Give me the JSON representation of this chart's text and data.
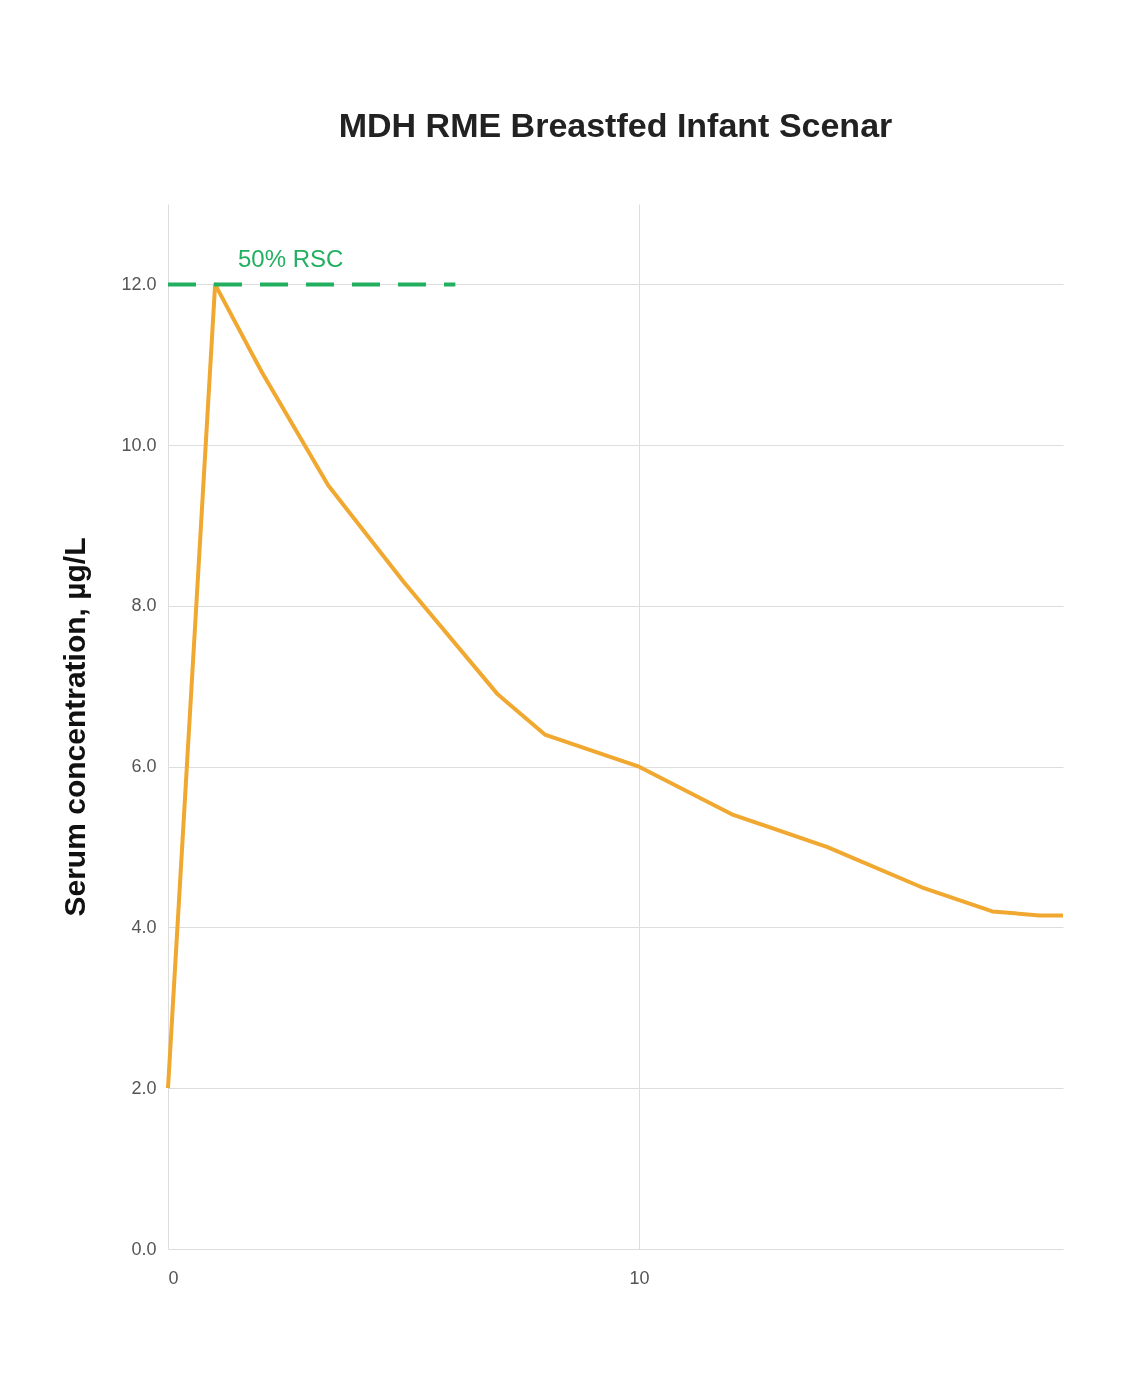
{
  "chart_data": {
    "type": "line",
    "title": "MDH RME Breastfed Infant Scenar",
    "ylabel": "Serum concentration, µg/L",
    "xlim": [
      0,
      19
    ],
    "xticks": [
      0,
      10
    ],
    "ylim": [
      0,
      13
    ],
    "yticks": [
      {
        "value": 0,
        "label": "0.0"
      },
      {
        "value": 2,
        "label": "2.0"
      },
      {
        "value": 4,
        "label": "4.0"
      },
      {
        "value": 6,
        "label": "6.0"
      },
      {
        "value": 8,
        "label": "8.0"
      },
      {
        "value": 10,
        "label": "10.0"
      },
      {
        "value": 12,
        "label": "12.0"
      }
    ],
    "grid": true,
    "series": [
      {
        "color": "#f0a830",
        "line_style": "solid",
        "x": [
          0,
          1.0,
          2,
          3.4,
          5,
          7,
          8,
          10,
          12,
          14,
          16,
          17.5,
          18.5,
          19
        ],
        "values": [
          2.0,
          12.0,
          10.9,
          9.5,
          8.3,
          6.9,
          6.4,
          6.0,
          5.4,
          5.0,
          4.5,
          4.2,
          4.15,
          4.15
        ]
      },
      {
        "name": "50% RSC",
        "color": "#22b060",
        "line_style": "dashed",
        "x": [
          0,
          6.1
        ],
        "values": [
          12,
          12
        ]
      }
    ]
  }
}
